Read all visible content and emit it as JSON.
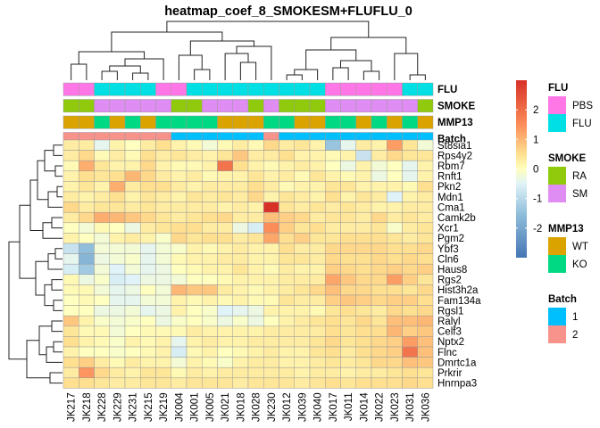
{
  "chart_data": {
    "type": "heatmap",
    "title": "heatmap_coef_8_SMOKESM+FLUFLU_0",
    "columns": [
      "JK217",
      "JK218",
      "JK228",
      "JK229",
      "JK231",
      "JK215",
      "JK219",
      "JK004",
      "JK001",
      "JK005",
      "JK021",
      "JK018",
      "JK028",
      "JK230",
      "JK012",
      "JK039",
      "JK040",
      "JK017",
      "JK011",
      "JK014",
      "JK022",
      "JK023",
      "JK031",
      "JK036"
    ],
    "rows": [
      "St8sia1",
      "Rps4y2",
      "Rbm7",
      "Rnft1",
      "Pkn2",
      "Mdn1",
      "Cma1",
      "Camk2b",
      "Xcr1",
      "Pgm2",
      "Ybf3",
      "Cln6",
      "Haus8",
      "Rgs2",
      "Hist3h2a",
      "Fam134a",
      "Rgsl1",
      "Ralyl",
      "Celf3",
      "Nptx2",
      "Flnc",
      "Dmrtc1a",
      "Prkrir",
      "Hnrnpa3"
    ],
    "values": [
      [
        0.3,
        0.3,
        -0.4,
        0.2,
        0.0,
        0.3,
        0.5,
        0.2,
        0.1,
        -0.2,
        0.1,
        0.3,
        0.1,
        0.6,
        0.3,
        0.4,
        0.2,
        -1.4,
        -0.4,
        0.3,
        0.2,
        1.3,
        0.4,
        -0.2
      ],
      [
        0.3,
        0.6,
        0.1,
        0.3,
        0.1,
        0.5,
        0.3,
        0.4,
        0.3,
        0.2,
        0.4,
        0.8,
        0.3,
        0.3,
        0.5,
        0.2,
        0.2,
        0.1,
        0.2,
        -0.8,
        0.3,
        0.6,
        0.4,
        0.4
      ],
      [
        0.1,
        1.1,
        0.4,
        0.2,
        0.2,
        0.6,
        0.2,
        0.1,
        0.1,
        0.2,
        1.9,
        0.5,
        0.2,
        0.1,
        0.2,
        0.3,
        0.2,
        0.0,
        -0.3,
        0.2,
        -0.2,
        0.0,
        -0.4,
        0.2
      ],
      [
        0.2,
        0.5,
        0.4,
        0.5,
        1.0,
        0.6,
        0.3,
        0.2,
        0.3,
        0.1,
        0.2,
        0.2,
        0.4,
        0.2,
        0.3,
        0.1,
        0.4,
        0.2,
        0.1,
        0.2,
        -0.3,
        0.0,
        -0.4,
        0.2
      ],
      [
        0.2,
        0.4,
        0.2,
        1.1,
        0.3,
        0.5,
        0.5,
        0.3,
        0.2,
        0.3,
        0.3,
        0.3,
        0.5,
        0.3,
        0.1,
        0.2,
        0.2,
        0.4,
        0.4,
        0.2,
        0.2,
        0.2,
        0.1,
        0.5
      ],
      [
        0.3,
        0.2,
        0.3,
        0.5,
        0.2,
        0.4,
        0.3,
        0.2,
        0.4,
        0.3,
        0.4,
        0.3,
        0.6,
        0.2,
        0.4,
        0.3,
        0.2,
        0.5,
        0.2,
        0.4,
        0.3,
        -0.5,
        0.2,
        0.3
      ],
      [
        0.6,
        0.3,
        0.4,
        0.4,
        0.3,
        0.4,
        0.3,
        0.3,
        0.3,
        0.3,
        0.2,
        0.3,
        0.2,
        3.0,
        0.4,
        0.3,
        0.4,
        0.3,
        0.4,
        0.3,
        0.2,
        0.2,
        0.3,
        0.3
      ],
      [
        0.3,
        0.6,
        1.1,
        1.0,
        0.8,
        0.6,
        0.4,
        0.3,
        0.4,
        0.5,
        0.6,
        0.3,
        0.3,
        0.9,
        0.7,
        0.6,
        0.3,
        0.4,
        0.4,
        0.3,
        0.6,
        0.3,
        0.4,
        0.3
      ],
      [
        0.0,
        -0.2,
        0.1,
        0.0,
        -0.3,
        0.3,
        0.4,
        0.5,
        0.5,
        0.3,
        0.3,
        -0.3,
        -0.6,
        1.5,
        0.7,
        0.4,
        0.5,
        0.3,
        0.3,
        0.3,
        0.4,
        -0.1,
        0.3,
        0.4
      ],
      [
        0.2,
        0.0,
        -0.2,
        0.2,
        0.3,
        0.2,
        -0.1,
        0.6,
        0.4,
        0.5,
        0.5,
        0.3,
        0.4,
        1.2,
        0.5,
        0.7,
        0.4,
        0.4,
        0.5,
        0.5,
        0.5,
        0.4,
        0.3,
        0.4
      ],
      [
        -0.8,
        -1.5,
        -0.2,
        -0.2,
        -0.2,
        -0.4,
        -0.2,
        -0.1,
        0.2,
        0.1,
        0.2,
        0.3,
        0.2,
        0.2,
        0.5,
        0.3,
        0.3,
        0.6,
        0.6,
        0.6,
        0.6,
        0.5,
        0.5,
        0.6
      ],
      [
        -0.4,
        -1.7,
        -0.3,
        -0.2,
        -0.1,
        -0.4,
        -0.2,
        0.1,
        0.2,
        0.2,
        0.3,
        0.3,
        0.2,
        0.2,
        0.4,
        0.4,
        0.3,
        0.6,
        0.5,
        0.5,
        0.6,
        0.5,
        0.6,
        0.5
      ],
      [
        -0.6,
        -1.3,
        -0.2,
        -0.5,
        -0.2,
        -0.4,
        -0.3,
        0.0,
        0.1,
        0.2,
        0.2,
        0.4,
        0.2,
        0.1,
        0.3,
        0.2,
        0.2,
        0.7,
        0.6,
        0.5,
        0.6,
        0.7,
        0.6,
        0.7
      ],
      [
        0.1,
        -0.3,
        -0.1,
        -0.6,
        -0.5,
        -0.3,
        -0.3,
        -0.2,
        0.0,
        0.0,
        0.1,
        0.2,
        0.2,
        0.2,
        0.3,
        0.3,
        0.3,
        1.2,
        0.8,
        0.6,
        0.6,
        1.3,
        0.7,
        0.4
      ],
      [
        0.1,
        0.1,
        -0.2,
        -0.4,
        -0.3,
        0.0,
        -0.2,
        1.0,
        0.8,
        0.8,
        0.3,
        0.2,
        0.1,
        0.2,
        0.3,
        0.4,
        0.6,
        0.9,
        0.6,
        0.6,
        0.5,
        0.5,
        0.4,
        0.6
      ],
      [
        0.0,
        0.1,
        0.0,
        -0.4,
        -0.4,
        -0.2,
        -0.2,
        0.2,
        0.1,
        0.2,
        0.1,
        0.2,
        0.1,
        0.1,
        0.4,
        0.3,
        0.3,
        0.7,
        0.8,
        0.7,
        0.6,
        0.7,
        0.7,
        0.5
      ],
      [
        0.0,
        0.0,
        -0.3,
        -0.3,
        -0.2,
        -0.4,
        -0.3,
        0.2,
        0.0,
        -0.1,
        -0.5,
        -0.4,
        -0.3,
        0.2,
        0.2,
        0.2,
        0.1,
        0.4,
        0.5,
        0.4,
        0.3,
        0.6,
        0.5,
        0.6
      ],
      [
        0.8,
        0.2,
        -0.1,
        -0.2,
        -0.1,
        0.0,
        -0.3,
        -0.1,
        0.0,
        -0.1,
        -0.3,
        -0.1,
        -0.3,
        0.0,
        0.2,
        0.3,
        0.4,
        0.5,
        0.4,
        0.6,
        0.4,
        0.9,
        0.9,
        1.0
      ],
      [
        0.4,
        0.1,
        0.1,
        -0.2,
        0.0,
        0.1,
        0.1,
        0.1,
        0.3,
        0.2,
        0.2,
        0.2,
        0.2,
        0.3,
        0.3,
        0.3,
        0.3,
        0.5,
        0.4,
        0.5,
        0.5,
        1.0,
        0.7,
        0.8
      ],
      [
        0.5,
        0.2,
        0.1,
        -0.1,
        0.2,
        0.1,
        0.2,
        -0.4,
        0.2,
        0.3,
        0.2,
        0.2,
        0.3,
        0.3,
        0.3,
        0.3,
        0.4,
        0.6,
        0.4,
        0.5,
        0.6,
        0.7,
        1.3,
        0.9
      ],
      [
        0.2,
        0.0,
        0.0,
        -0.1,
        0.0,
        0.1,
        0.2,
        -0.6,
        0.1,
        0.2,
        0.0,
        0.1,
        0.2,
        0.3,
        0.2,
        0.2,
        0.4,
        0.5,
        0.3,
        0.5,
        0.6,
        0.7,
        1.9,
        0.9
      ],
      [
        0.5,
        0.7,
        0.3,
        0.1,
        0.3,
        0.2,
        0.2,
        -0.2,
        0.2,
        0.1,
        -0.1,
        0.2,
        0.3,
        0.3,
        0.2,
        0.2,
        0.3,
        0.4,
        0.3,
        0.4,
        0.6,
        0.6,
        0.9,
        0.8
      ],
      [
        0.3,
        1.4,
        0.6,
        0.3,
        0.2,
        0.4,
        0.4,
        0.1,
        0.3,
        0.2,
        0.3,
        0.3,
        0.3,
        0.3,
        0.3,
        0.2,
        0.3,
        0.3,
        0.2,
        0.3,
        0.3,
        0.4,
        0.5,
        0.4
      ],
      [
        0.5,
        0.5,
        0.4,
        0.3,
        0.3,
        0.4,
        0.4,
        0.3,
        0.4,
        0.4,
        0.4,
        0.3,
        0.4,
        0.4,
        0.4,
        0.3,
        0.4,
        0.5,
        0.4,
        0.5,
        0.5,
        0.5,
        0.6,
        0.5
      ]
    ],
    "color_scale": {
      "min": -3,
      "max": 3,
      "stops": [
        {
          "value": -3,
          "color": "#4575B4"
        },
        {
          "value": -1.5,
          "color": "#91BFDB"
        },
        {
          "value": -0.5,
          "color": "#E0F3F8"
        },
        {
          "value": 0,
          "color": "#FFFFBF"
        },
        {
          "value": 0.5,
          "color": "#FEE090"
        },
        {
          "value": 1.5,
          "color": "#FC8D59"
        },
        {
          "value": 3,
          "color": "#D73027"
        }
      ],
      "ticks": [
        2,
        1,
        0,
        -1,
        -2
      ],
      "tick_labels": [
        "2",
        "1",
        "0",
        "-1",
        "-2"
      ]
    },
    "annotations": [
      {
        "name": "FLU",
        "values": [
          "PBS",
          "PBS",
          "FLU",
          "FLU",
          "FLU",
          "FLU",
          "PBS",
          "PBS",
          "FLU",
          "FLU",
          "FLU",
          "FLU",
          "FLU",
          "FLU",
          "FLU",
          "FLU",
          "FLU",
          "PBS",
          "PBS",
          "PBS",
          "PBS",
          "PBS",
          "FLU",
          "FLU"
        ]
      },
      {
        "name": "SMOKE",
        "values": [
          "RA",
          "RA",
          "SM",
          "SM",
          "SM",
          "SM",
          "SM",
          "RA",
          "RA",
          "SM",
          "SM",
          "SM",
          "RA",
          "SM",
          "RA",
          "RA",
          "RA",
          "SM",
          "SM",
          "SM",
          "SM",
          "SM",
          "SM",
          "RA"
        ]
      },
      {
        "name": "MMP13",
        "values": [
          "WT",
          "WT",
          "KO",
          "WT",
          "KO",
          "WT",
          "KO",
          "KO",
          "KO",
          "KO",
          "WT",
          "WT",
          "WT",
          "KO",
          "KO",
          "WT",
          "WT",
          "KO",
          "KO",
          "WT",
          "KO",
          "WT",
          "KO",
          "WT"
        ]
      },
      {
        "name": "Batch",
        "values": [
          "2",
          "2",
          "2",
          "2",
          "2",
          "2",
          "2",
          "1",
          "1",
          "1",
          "1",
          "1",
          "1",
          "2",
          "1",
          "1",
          "1",
          "1",
          "1",
          "1",
          "1",
          "1",
          "1",
          "1"
        ]
      }
    ],
    "legends": [
      {
        "name": "FLU",
        "levels": [
          {
            "label": "PBS",
            "color": "#FF77E6"
          },
          {
            "label": "FLU",
            "color": "#00E0E4"
          }
        ]
      },
      {
        "name": "SMOKE",
        "levels": [
          {
            "label": "RA",
            "color": "#8FCB0C"
          },
          {
            "label": "SM",
            "color": "#E08DF3"
          }
        ]
      },
      {
        "name": "MMP13",
        "levels": [
          {
            "label": "WT",
            "color": "#DAA300"
          },
          {
            "label": "KO",
            "color": "#00D983"
          }
        ]
      },
      {
        "name": "Batch",
        "levels": [
          {
            "label": "1",
            "color": "#00BFFF"
          },
          {
            "label": "2",
            "color": "#F8938B"
          }
        ]
      }
    ],
    "cell_border_color": "#999999",
    "dendrogram_color": "#222222"
  }
}
